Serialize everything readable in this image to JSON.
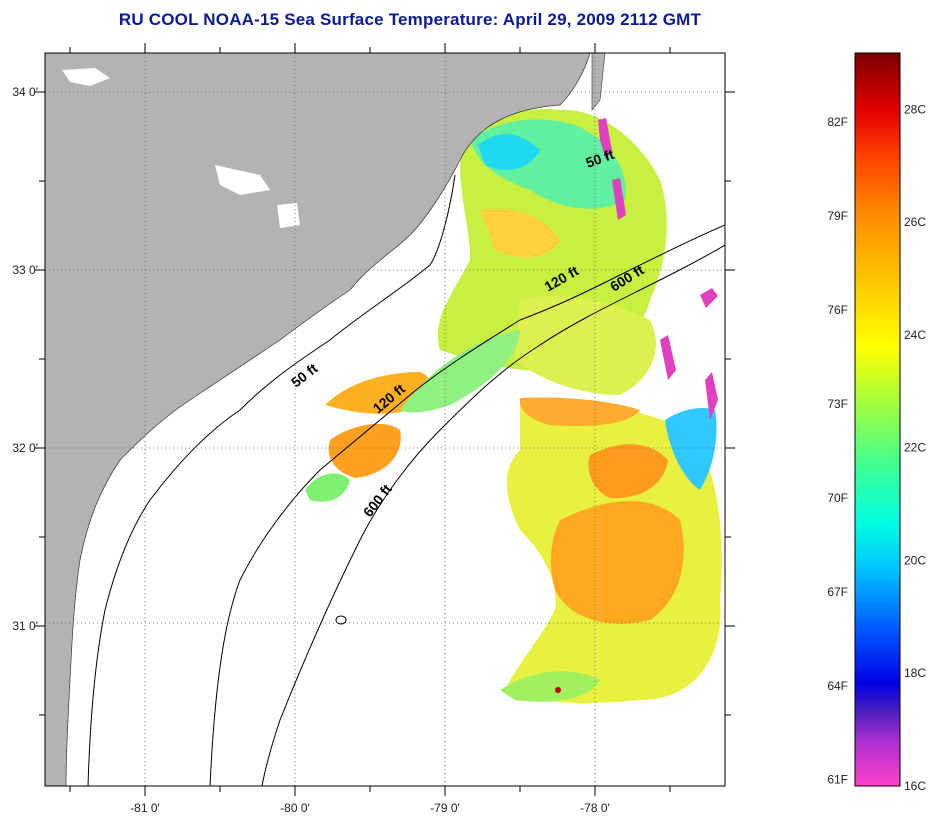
{
  "title": "RU COOL  NOAA-15  Sea Surface Temperature:  April 29, 2009 2112 GMT",
  "map": {
    "lon_range": [
      -81.7,
      -77.2
    ],
    "lat_range": [
      30.0,
      34.2
    ],
    "lon_ticks": [
      {
        "value": -81,
        "label": "-81 0'"
      },
      {
        "value": -80,
        "label": "-80 0'"
      },
      {
        "value": -79,
        "label": "-79 0'"
      },
      {
        "value": -78,
        "label": "-78 0'"
      }
    ],
    "lat_ticks": [
      {
        "value": 34,
        "label": "34 0'"
      },
      {
        "value": 33,
        "label": "33 0'"
      },
      {
        "value": 32,
        "label": "32 0'"
      },
      {
        "value": 31,
        "label": "31 0'"
      }
    ],
    "land_color": "#b3b3b3",
    "no_data_color": "#ffffff",
    "gridlines": "dotted"
  },
  "isobaths": [
    {
      "label": "50 ft",
      "id": "iso-50-north"
    },
    {
      "label": "50 ft",
      "id": "iso-50-south"
    },
    {
      "label": "120 ft",
      "id": "iso-120-north"
    },
    {
      "label": "120 ft",
      "id": "iso-120-south"
    },
    {
      "label": "600 ft",
      "id": "iso-600-north"
    },
    {
      "label": "600 ft",
      "id": "iso-600-south"
    }
  ],
  "colorbar": {
    "min_c": 16,
    "max_c": 29,
    "fahrenheit_labels": [
      "82F",
      "79F",
      "76F",
      "73F",
      "70F",
      "67F",
      "64F",
      "61F"
    ],
    "celsius_labels": [
      "28C",
      "26C",
      "24C",
      "22C",
      "20C",
      "18C",
      "16C"
    ],
    "colors": {
      "c16": "#ff40c8",
      "c17": "#6020c0",
      "c18": "#0000e6",
      "c19": "#0060ff",
      "c20": "#00c8ff",
      "c21": "#00ffe0",
      "c22": "#40ff90",
      "c23": "#a0ff40",
      "c24": "#ffff00",
      "c25": "#ffc000",
      "c26": "#ff8c00",
      "c27": "#ff4000",
      "c28": "#e60000",
      "c29": "#8b0000"
    }
  }
}
